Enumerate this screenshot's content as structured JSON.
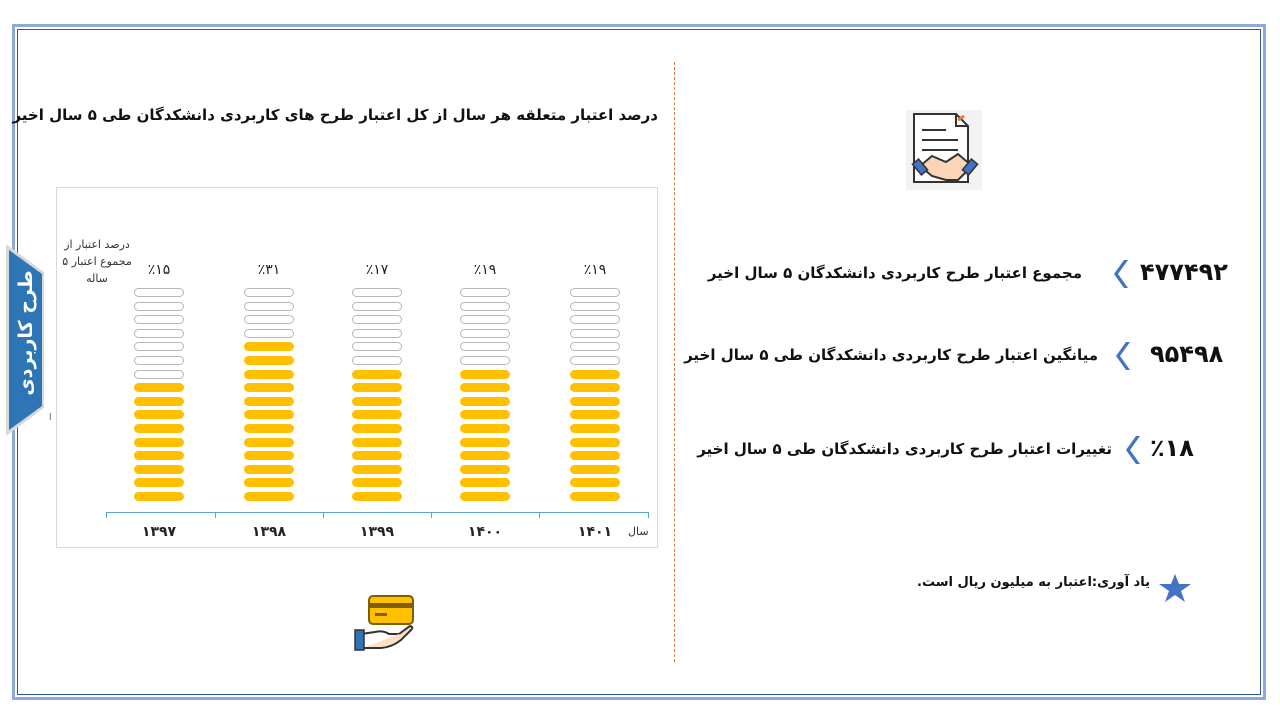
{
  "side_tab": {
    "label": "طرح کاربردی"
  },
  "misc": {
    "tiny_mark": "ا"
  },
  "chart_data": {
    "type": "bar",
    "title": "درصد اعتبار  متعلقه هر سال از کل اعتبار طرح های کاربردی دانشکدگان طی ۵ سال اخیر",
    "ylabel": "درصد اعتبار از مجموع اعتبار ۵ ساله",
    "xlabel": "سال",
    "categories": [
      "۱۳۹۷",
      "۱۳۹۸",
      "۱۳۹۹",
      "۱۴۰۰",
      "۱۴۰۱"
    ],
    "values": [
      15,
      31,
      17,
      19,
      19
    ],
    "value_labels": [
      "٪۱۵",
      "٪۳۱",
      "٪۱۷",
      "٪۱۹",
      "٪۱۹"
    ],
    "ylim": [
      0,
      100
    ],
    "bar_color": "#ffc000",
    "axis_color": "#5ba3d0"
  },
  "stats": [
    {
      "value": "۴۷۷۴۹۲",
      "label": "مجموع اعتبار طرح کاربردی  دانشکدگان ۵ سال اخیر"
    },
    {
      "value": "۹۵۴۹۸",
      "label": "میانگین اعتبار  طرح کاربردی دانشکدگان  طی ۵ سال اخیر"
    },
    {
      "value": "٪۱۸",
      "label": "تغییرات اعتبار  طرح کاربردی دانشکدگان طی ۵ سال اخیر"
    }
  ],
  "note": {
    "text": "یاد آوری:اعتبار به میلیون ریال است."
  },
  "icons": {
    "document": "contract-handshake-icon",
    "card": "credit-card-hand-icon",
    "star": "star-icon",
    "chevron": "chevron-left-icon"
  },
  "colors": {
    "frame": "#8eaadb",
    "tab": "#2e75b6",
    "accent": "#4472c4",
    "divider": "#e07b39"
  }
}
